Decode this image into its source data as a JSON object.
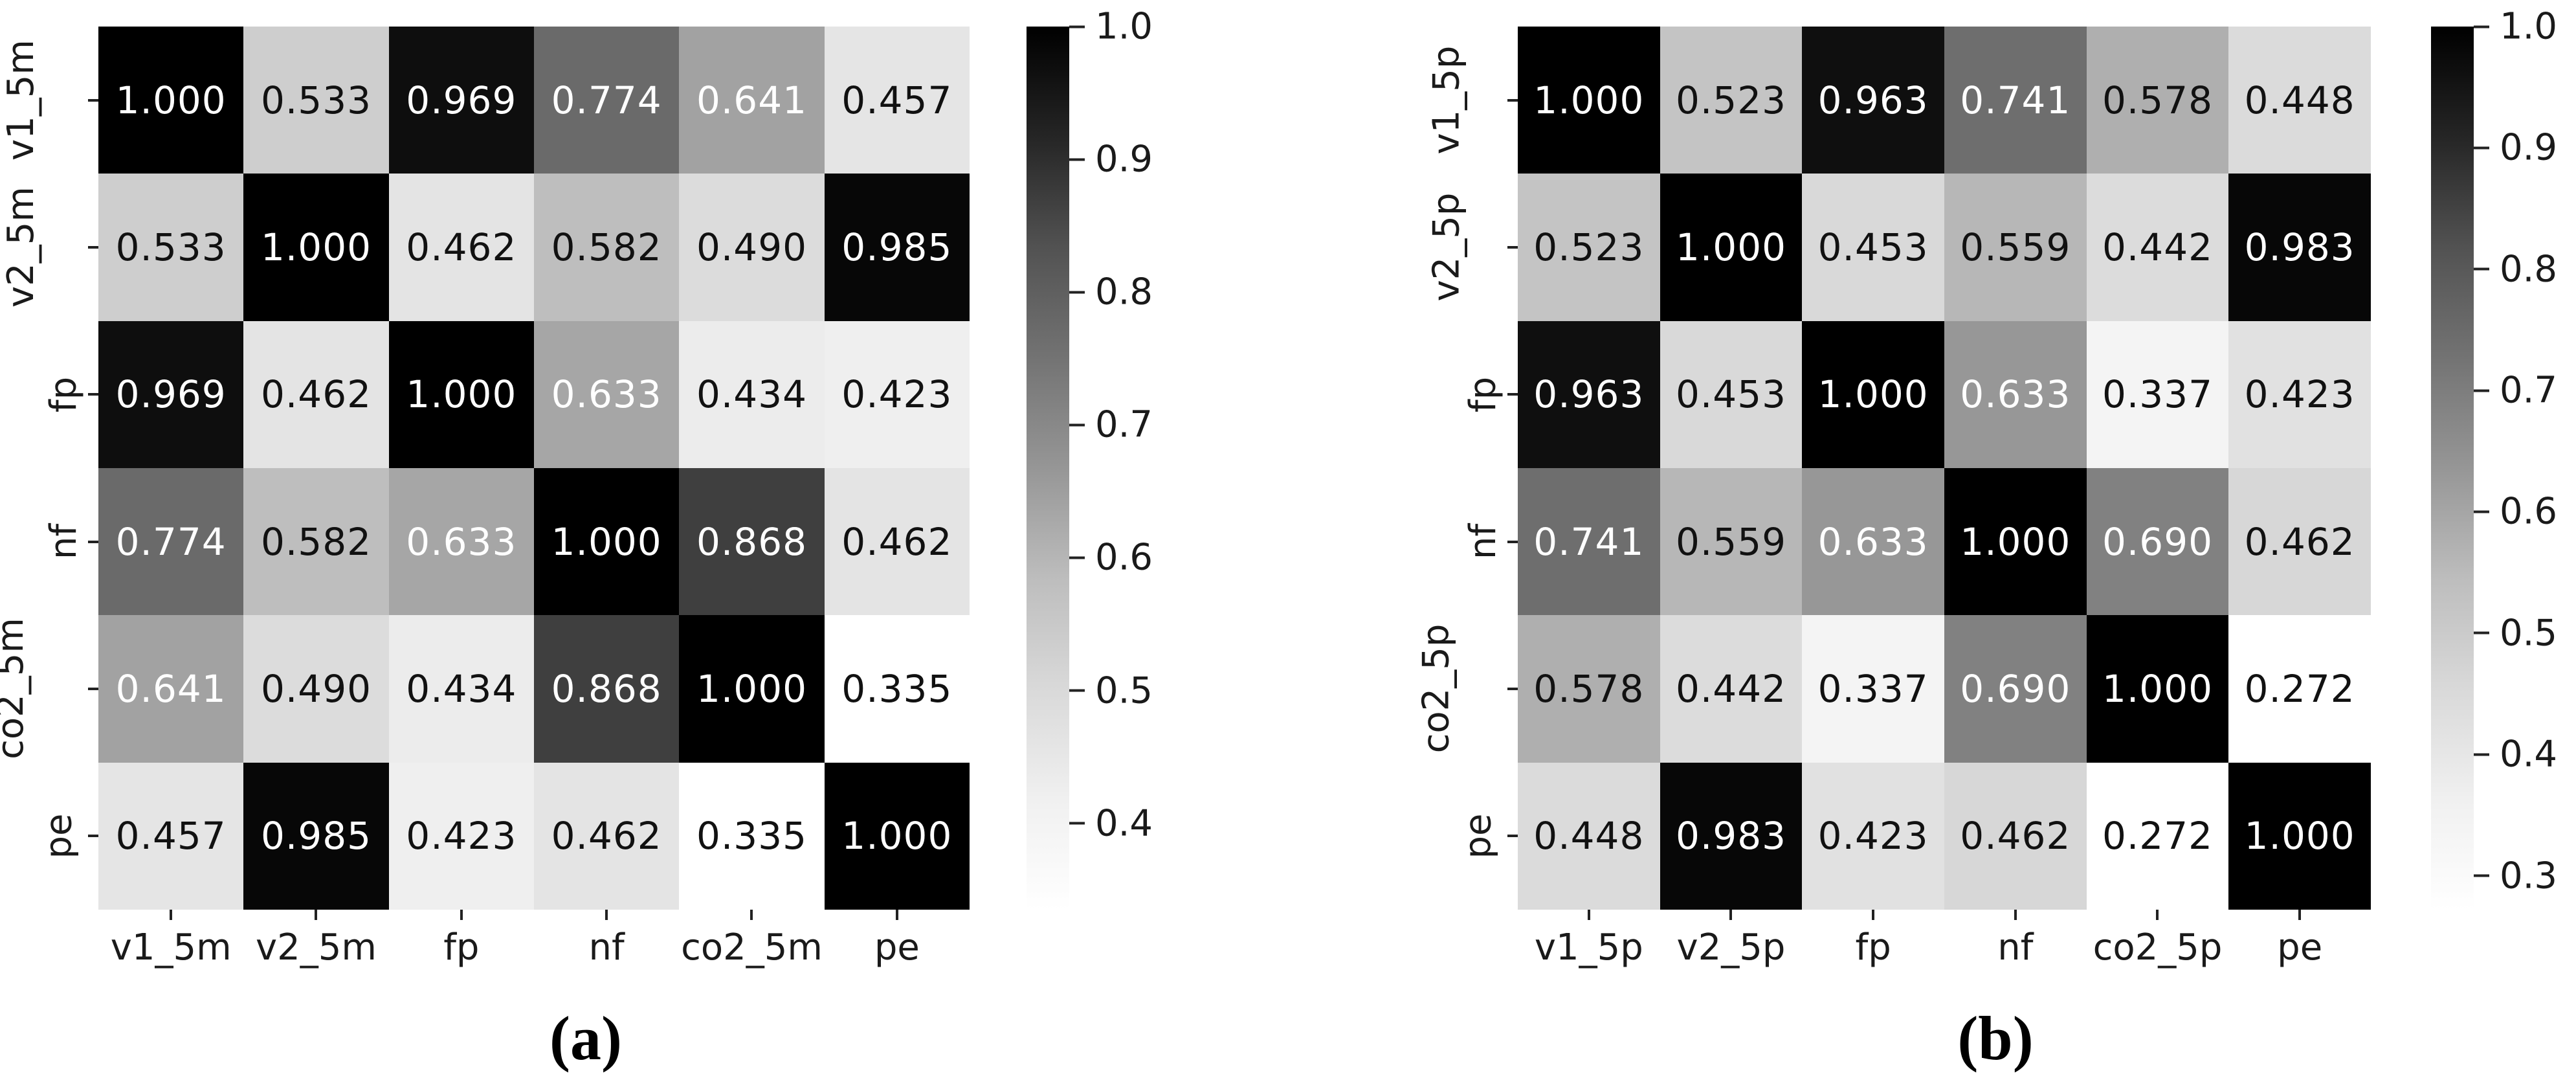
{
  "chart_data": [
    {
      "id": "a",
      "type": "heatmap",
      "title": "",
      "caption": "(a)",
      "x_labels": [
        "v1_5m",
        "v2_5m",
        "fp",
        "nf",
        "co2_5m",
        "pe"
      ],
      "y_labels": [
        "v1_5m",
        "v2_5m",
        "fp",
        "nf",
        "co2_5m",
        "pe"
      ],
      "values": [
        [
          1.0,
          0.533,
          0.969,
          0.774,
          0.641,
          0.457
        ],
        [
          0.533,
          1.0,
          0.462,
          0.582,
          0.49,
          0.985
        ],
        [
          0.969,
          0.462,
          1.0,
          0.633,
          0.434,
          0.423
        ],
        [
          0.774,
          0.582,
          0.633,
          1.0,
          0.868,
          0.462
        ],
        [
          0.641,
          0.49,
          0.434,
          0.868,
          1.0,
          0.335
        ],
        [
          0.457,
          0.985,
          0.423,
          0.462,
          0.335,
          1.0
        ]
      ],
      "value_decimals": 3,
      "colormap": {
        "name": "Greys",
        "high_color": "#000000",
        "low_color": "#ffffff"
      },
      "colorbar": {
        "vmin": 0.335,
        "vmax": 1.0,
        "ticks": [
          1.0,
          0.9,
          0.8,
          0.7,
          0.6,
          0.5,
          0.4
        ],
        "tick_decimals": 1,
        "position": "right"
      },
      "grid_on": false,
      "legend": null
    },
    {
      "id": "b",
      "type": "heatmap",
      "title": "",
      "caption": "(b)",
      "x_labels": [
        "v1_5p",
        "v2_5p",
        "fp",
        "nf",
        "co2_5p",
        "pe"
      ],
      "y_labels": [
        "v1_5p",
        "v2_5p",
        "fp",
        "nf",
        "co2_5p",
        "pe"
      ],
      "values": [
        [
          1.0,
          0.523,
          0.963,
          0.741,
          0.578,
          0.448
        ],
        [
          0.523,
          1.0,
          0.453,
          0.559,
          0.442,
          0.983
        ],
        [
          0.963,
          0.453,
          1.0,
          0.633,
          0.337,
          0.423
        ],
        [
          0.741,
          0.559,
          0.633,
          1.0,
          0.69,
          0.462
        ],
        [
          0.578,
          0.442,
          0.337,
          0.69,
          1.0,
          0.272
        ],
        [
          0.448,
          0.983,
          0.423,
          0.462,
          0.272,
          1.0
        ]
      ],
      "value_decimals": 3,
      "colormap": {
        "name": "Greys",
        "high_color": "#000000",
        "low_color": "#ffffff"
      },
      "colorbar": {
        "vmin": 0.272,
        "vmax": 1.0,
        "ticks": [
          1.0,
          0.9,
          0.8,
          0.7,
          0.6,
          0.5,
          0.4,
          0.3
        ],
        "tick_decimals": 1,
        "position": "right"
      },
      "grid_on": false,
      "legend": null
    }
  ]
}
